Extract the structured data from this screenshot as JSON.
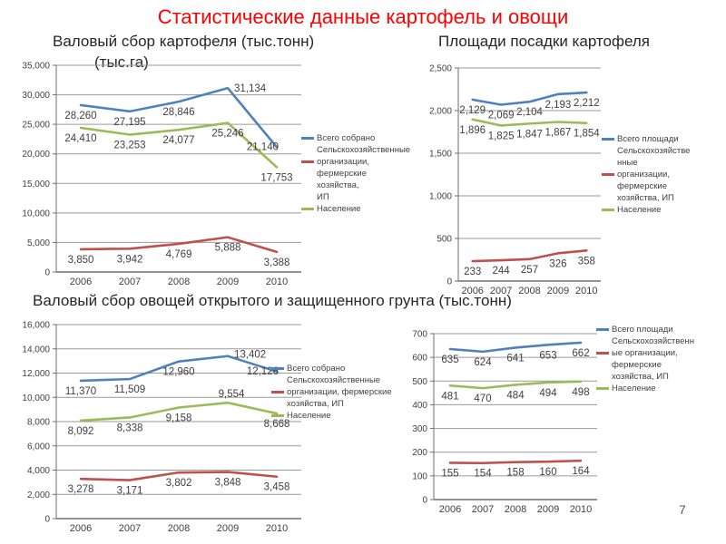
{
  "page": {
    "title": "Статистические данные картофель и овощи",
    "title_color": "#ff0000",
    "page_number": "7"
  },
  "colors": {
    "blue": "#4F81BD",
    "red": "#C0504D",
    "green": "#9BBB59"
  },
  "chart_data": [
    {
      "id": "potato-gross-harvest",
      "type": "line",
      "title": "Валовый сбор картофеля (тыс.тонн)",
      "categories": [
        "2006",
        "2007",
        "2008",
        "2009",
        "2010"
      ],
      "series": [
        {
          "name": "Всего собрано",
          "color": "#4F81BD",
          "values": [
            28260,
            27195,
            28846,
            31134,
            21140
          ]
        },
        {
          "name": "Сельскохозяйственные организации, фермерские хозяйства, ИП",
          "color": "#C0504D",
          "values": [
            3850,
            3942,
            4769,
            5888,
            3388
          ]
        },
        {
          "name": "Население",
          "color": "#9BBB59",
          "values": [
            24410,
            23253,
            24077,
            25246,
            17753
          ]
        }
      ],
      "ylim": [
        0,
        35000
      ],
      "ytick_step": 5000,
      "grid": true,
      "legend_position": "right",
      "legend_lines": [
        {
          "marker": "#4F81BD",
          "text": "Всего собрано"
        },
        {
          "marker": null,
          "text": "Сельскохозяйственные"
        },
        {
          "marker": "#C0504D",
          "text": "организации,"
        },
        {
          "marker": null,
          "text": "фермерские хозяйства,"
        },
        {
          "marker": null,
          "text": "ИП"
        },
        {
          "marker": "#9BBB59",
          "text": "Население"
        }
      ]
    },
    {
      "id": "potato-planted-area",
      "type": "line",
      "title": "Площади посадки картофеля",
      "unit": "(тыс.га)",
      "categories": [
        "2006",
        "2007",
        "2008",
        "2009",
        "2010"
      ],
      "series": [
        {
          "name": "Всего площади",
          "color": "#4F81BD",
          "values": [
            2129,
            2069,
            2104,
            2193,
            2212
          ]
        },
        {
          "name": "Сельскохозяйственные организации, фермерские хозяйства, ИП",
          "color": "#C0504D",
          "values": [
            233,
            244,
            257,
            326,
            358
          ]
        },
        {
          "name": "Население",
          "color": "#9BBB59",
          "values": [
            1896,
            1825,
            1847,
            1867,
            1854
          ]
        }
      ],
      "ylim": [
        0,
        2500
      ],
      "ytick_step": 500,
      "grid": true,
      "legend_position": "right",
      "legend_lines": [
        {
          "marker": "#4F81BD",
          "text": "Всего площади"
        },
        {
          "marker": null,
          "text": "Сельскохозяйстве"
        },
        {
          "marker": null,
          "text": "нные"
        },
        {
          "marker": "#C0504D",
          "text": "организации,"
        },
        {
          "marker": null,
          "text": "фермерские"
        },
        {
          "marker": null,
          "text": "хозяйства, ИП"
        },
        {
          "marker": "#9BBB59",
          "text": "Население"
        }
      ]
    },
    {
      "id": "vegetables-gross-harvest",
      "type": "line",
      "title": "Валовый сбор овощей открытого и защищенного грунта (тыс.тонн)",
      "categories": [
        "2006",
        "2007",
        "2008",
        "2009",
        "2010"
      ],
      "series": [
        {
          "name": "Всего собрано",
          "color": "#4F81BD",
          "values": [
            11370,
            11509,
            12960,
            13402,
            12126
          ]
        },
        {
          "name": "Сельскохозяйственные организации, фермерские хозяйства, ИП",
          "color": "#C0504D",
          "values": [
            3278,
            3171,
            3802,
            3848,
            3458
          ]
        },
        {
          "name": "Население",
          "color": "#9BBB59",
          "values": [
            8092,
            8338,
            9158,
            9554,
            8668
          ]
        }
      ],
      "ylim": [
        0,
        16000
      ],
      "ytick_step": 2000,
      "grid": true,
      "legend_position": "right",
      "legend_lines": [
        {
          "marker": "#4F81BD",
          "text": "Всего собрано"
        },
        {
          "marker": null,
          "text": "Сельскохозяйственные"
        },
        {
          "marker": "#C0504D",
          "text": "организации, фермерские"
        },
        {
          "marker": null,
          "text": "хозяйства, ИП"
        },
        {
          "marker": "#9BBB59",
          "text": "Население"
        }
      ]
    },
    {
      "id": "vegetables-planted-area",
      "type": "line",
      "title": "",
      "categories": [
        "2006",
        "2007",
        "2008",
        "2009",
        "2010"
      ],
      "series": [
        {
          "name": "Всего площади",
          "color": "#4F81BD",
          "values": [
            635,
            624,
            641,
            653,
            662
          ]
        },
        {
          "name": "Сельскохозяйственные организации, фермерские хозяйства, ИП",
          "color": "#C0504D",
          "values": [
            155,
            154,
            158,
            160,
            164
          ]
        },
        {
          "name": "Население",
          "color": "#9BBB59",
          "values": [
            481,
            470,
            484,
            494,
            498
          ]
        }
      ],
      "ylim": [
        0,
        700
      ],
      "ytick_step": 100,
      "grid": true,
      "legend_position": "right",
      "legend_lines": [
        {
          "marker": "#4F81BD",
          "text": "Всего площади"
        },
        {
          "marker": null,
          "text": "Сельскохозяйственн"
        },
        {
          "marker": "#C0504D",
          "text": "ые организации,"
        },
        {
          "marker": null,
          "text": "фермерские"
        },
        {
          "marker": null,
          "text": "хозяйства, ИП"
        },
        {
          "marker": "#9BBB59",
          "text": "Население"
        }
      ]
    }
  ]
}
